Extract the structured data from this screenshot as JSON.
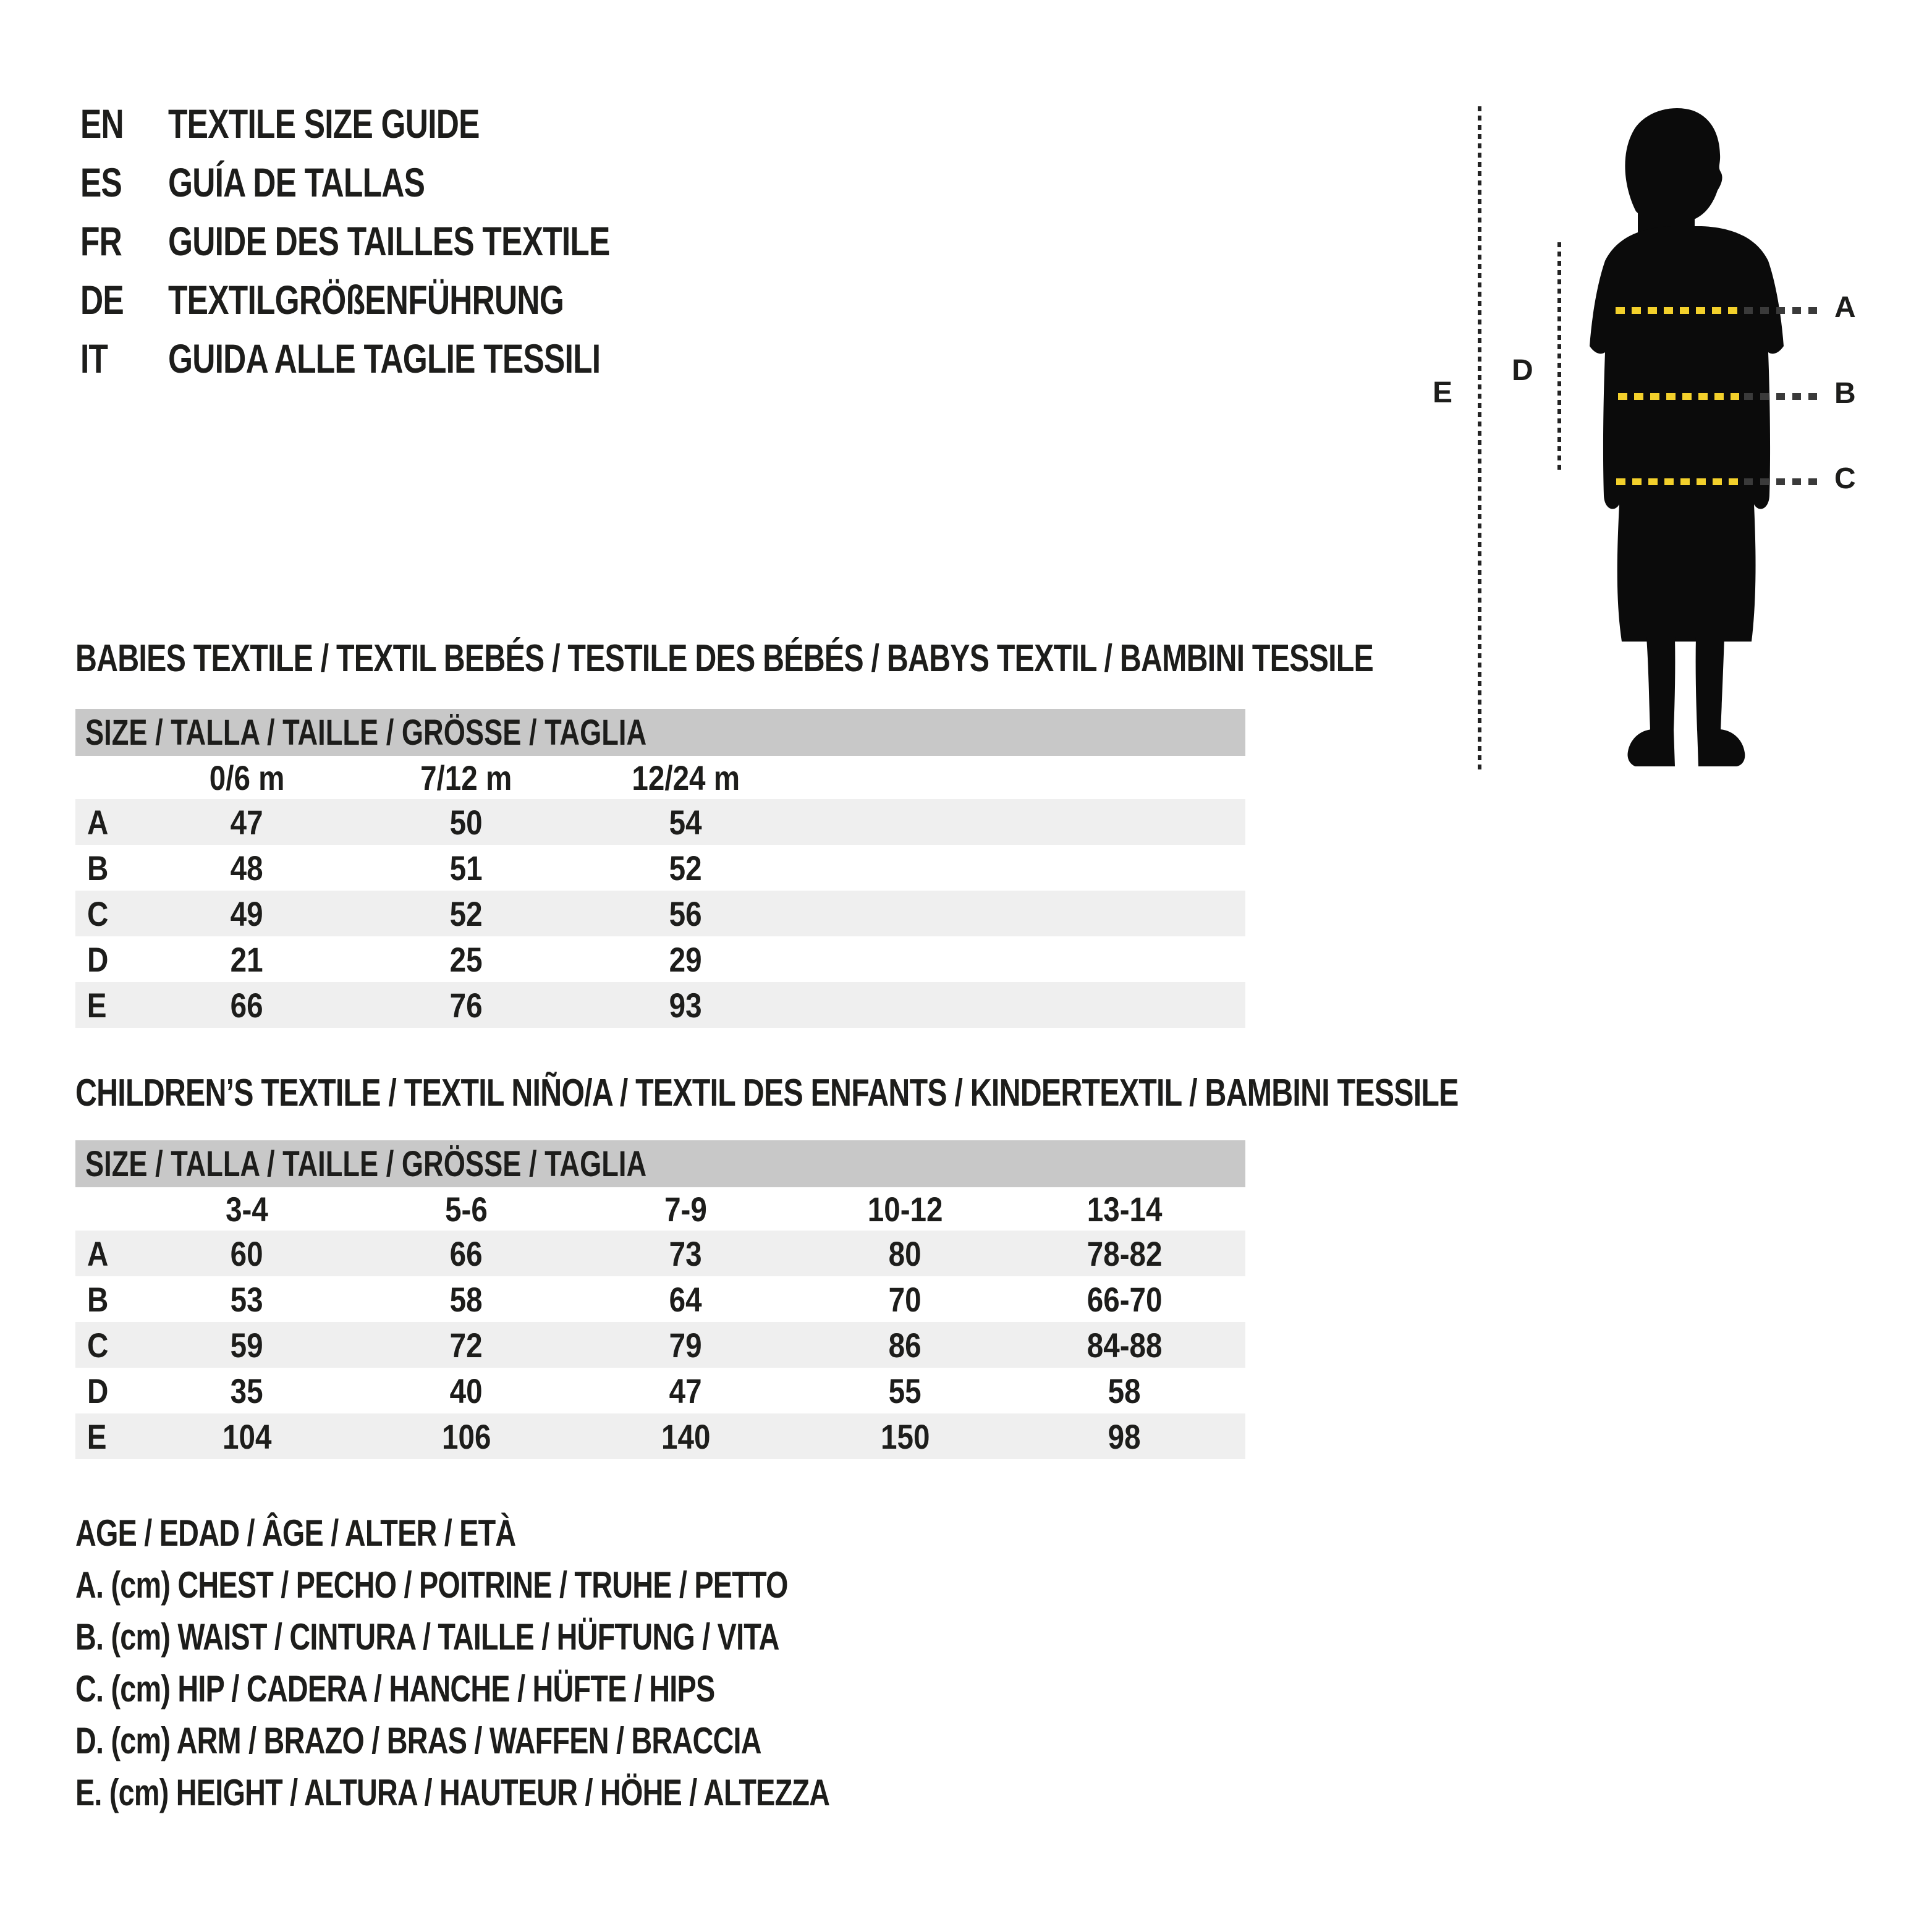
{
  "colors": {
    "background": "#ffffff",
    "text": "#1d1d1b",
    "table_header_bg": "#c8c8c8",
    "row_stripe_bg": "#efefef",
    "silhouette": "#0b0b0b",
    "measure_dash_yellow": "#f3d02b",
    "measure_dash_dark": "#3a3a3a"
  },
  "language_guide": {
    "items": [
      {
        "code": "EN",
        "label": "TEXTILE SIZE GUIDE"
      },
      {
        "code": "ES",
        "label": "GUÍA DE TALLAS"
      },
      {
        "code": "FR",
        "label": "GUIDE DES TAILLES TEXTILE"
      },
      {
        "code": "DE",
        "label": "TEXTILGRÖßENFÜHRUNG"
      },
      {
        "code": "IT",
        "label": "GUIDA ALLE TAGLIE TESSILI"
      }
    ]
  },
  "figure": {
    "labels": {
      "A": "A",
      "B": "B",
      "C": "C",
      "D": "D",
      "E": "E"
    }
  },
  "babies_table": {
    "title": "BABIES TEXTILE / TEXTIL BEBÉS / TESTILE DES BÉBÉS / BABYS TEXTIL / BAMBINI TESSILE",
    "header": "SIZE / TALLA / TAILLE / GRÖSSE / TAGLIA",
    "columns": [
      "0/6 m",
      "7/12 m",
      "12/24 m"
    ],
    "rows": [
      {
        "label": "A",
        "values": [
          "47",
          "50",
          "54"
        ]
      },
      {
        "label": "B",
        "values": [
          "48",
          "51",
          "52"
        ]
      },
      {
        "label": "C",
        "values": [
          "49",
          "52",
          "56"
        ]
      },
      {
        "label": "D",
        "values": [
          "21",
          "25",
          "29"
        ]
      },
      {
        "label": "E",
        "values": [
          "66",
          "76",
          "93"
        ]
      }
    ]
  },
  "children_table": {
    "title": "CHILDREN’S TEXTILE / TEXTIL NIÑO/A / TEXTIL DES ENFANTS / KINDERTEXTIL / BAMBINI TESSILE",
    "header": "SIZE / TALLA / TAILLE / GRÖSSE / TAGLIA",
    "columns": [
      "3-4",
      "5-6",
      "7-9",
      "10-12",
      "13-14"
    ],
    "rows": [
      {
        "label": "A",
        "values": [
          "60",
          "66",
          "73",
          "80",
          "78-82"
        ]
      },
      {
        "label": "B",
        "values": [
          "53",
          "58",
          "64",
          "70",
          "66-70"
        ]
      },
      {
        "label": "C",
        "values": [
          "59",
          "72",
          "79",
          "86",
          "84-88"
        ]
      },
      {
        "label": "D",
        "values": [
          "35",
          "40",
          "47",
          "55",
          "58"
        ]
      },
      {
        "label": "E",
        "values": [
          "104",
          "106",
          "140",
          "150",
          "98"
        ]
      }
    ]
  },
  "legend": {
    "lines": [
      "AGE / EDAD / ÂGE / ALTER / ETÀ",
      "A. (cm) CHEST / PECHO / POITRINE / TRUHE / PETTO",
      "B. (cm) WAIST / CINTURA / TAILLE / HÜFTUNG / VITA",
      "C. (cm) HIP / CADERA / HANCHE / HÜFTE / HIPS",
      "D. (cm) ARM / BRAZO / BRAS / WAFFEN / BRACCIA",
      "E. (cm) HEIGHT / ALTURA / HAUTEUR / HÖHE / ALTEZZA"
    ]
  }
}
